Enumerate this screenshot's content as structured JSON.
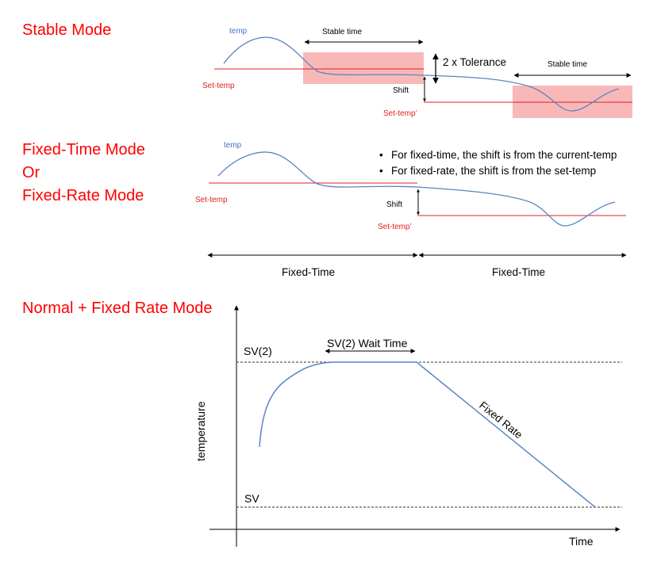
{
  "titles": {
    "stable": "Stable Mode",
    "fixed_time": "Fixed-Time Mode",
    "or": "Or",
    "fixed_rate": "Fixed-Rate Mode",
    "normal_fixed_rate": "Normal + Fixed Rate Mode"
  },
  "stable_diagram": {
    "temp_label": "temp",
    "set_temp_label": "Set-temp",
    "set_temp_prime_label": "Set-temp’",
    "stable_time_label_1": "Stable time",
    "stable_time_label_2": "Stable time",
    "tolerance_label": "2 x Tolerance",
    "shift_label": "Shift"
  },
  "fixed_diagram": {
    "temp_label": "temp",
    "set_temp_label": "Set-temp",
    "set_temp_prime_label": "Set-temp’",
    "shift_label": "Shift",
    "bullets": [
      "For fixed-time, the shift is from the current-temp",
      "For fixed-rate, the shift is from the set-temp"
    ],
    "interval_label_1": "Fixed-Time",
    "interval_label_2": "Fixed-Time"
  },
  "normal_diagram": {
    "y_axis_label": "temperature",
    "x_axis_label": "Time",
    "sv2_label": "SV(2)",
    "sv_label": "SV",
    "wait_time_label": "SV(2) Wait Time",
    "fixed_rate_label": "Fixed Rate"
  },
  "colors": {
    "title_red": "#ff0000",
    "curve_blue": "#5b84c4",
    "set_line_red": "#e02020",
    "band_pink": "#f8b8b8"
  }
}
